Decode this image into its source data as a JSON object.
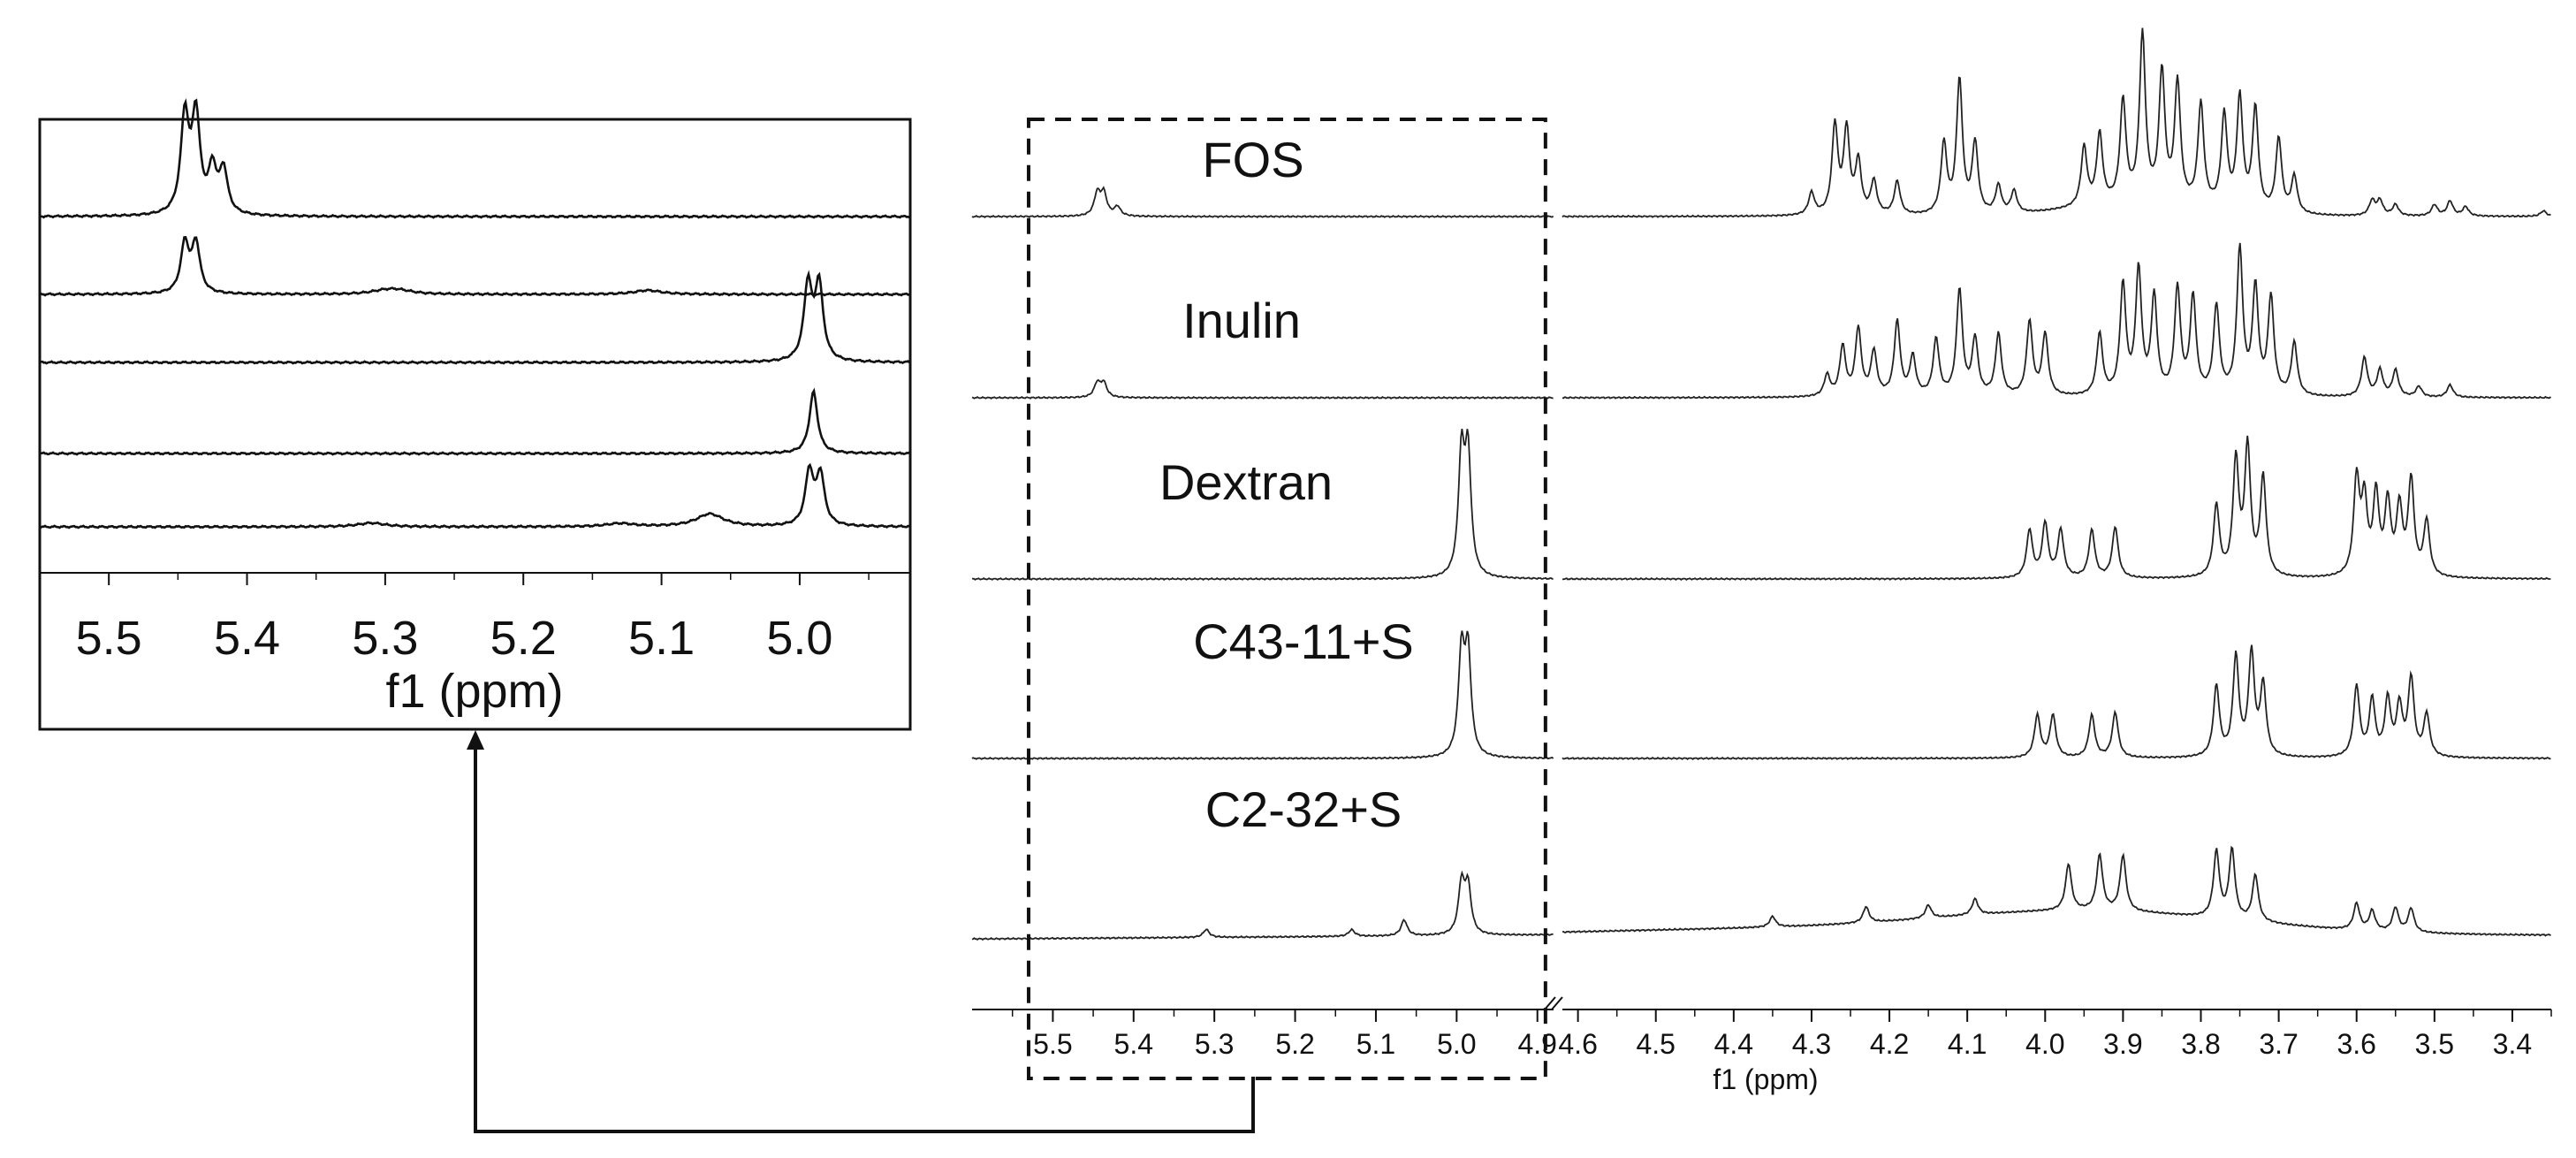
{
  "chart_data": [
    {
      "type": "line",
      "panel": "inset",
      "xlabel": "f1 (ppm)",
      "ylabel": "",
      "xlim": [
        5.55,
        4.92
      ],
      "x_reversed": true,
      "x_ticks": [
        "5.5",
        "5.4",
        "5.3",
        "5.2",
        "5.1",
        "5.0"
      ],
      "series": [
        {
          "order": 1,
          "peaks": [
            {
              "x": 5.445,
              "h": 1.0
            },
            {
              "x": 5.437,
              "h": 1.0
            },
            {
              "x": 5.425,
              "h": 0.45
            },
            {
              "x": 5.417,
              "h": 0.45
            }
          ]
        },
        {
          "order": 2,
          "peaks": [
            {
              "x": 5.445,
              "h": 0.75
            },
            {
              "x": 5.437,
              "h": 0.75
            },
            {
              "x": 5.3,
              "h": 0.05
            },
            {
              "x": 5.29,
              "h": 0.05
            },
            {
              "x": 5.11,
              "h": 0.06
            }
          ]
        },
        {
          "order": 3,
          "peaks": [
            {
              "x": 4.994,
              "h": 1.0
            },
            {
              "x": 4.986,
              "h": 1.0
            }
          ]
        },
        {
          "order": 4,
          "peaks": [
            {
              "x": 4.99,
              "h": 0.9
            }
          ]
        },
        {
          "order": 5,
          "peaks": [
            {
              "x": 4.993,
              "h": 0.85
            },
            {
              "x": 4.985,
              "h": 0.8
            },
            {
              "x": 5.065,
              "h": 0.2
            },
            {
              "x": 5.31,
              "h": 0.06
            },
            {
              "x": 5.13,
              "h": 0.05
            }
          ]
        }
      ]
    },
    {
      "type": "line",
      "panel": "main",
      "xlabel": "f1 (ppm)",
      "ylabel": "",
      "xlim": [
        5.6,
        3.35
      ],
      "x_reversed": true,
      "axis_break_between": [
        4.9,
        4.6
      ],
      "x_ticks": [
        "5.5",
        "5.4",
        "5.3",
        "5.2",
        "5.1",
        "5.0",
        "4.9",
        "4.6",
        "4.5",
        "4.4",
        "4.3",
        "4.2",
        "4.1",
        "4.0",
        "3.9",
        "3.8",
        "3.7",
        "3.6",
        "3.5",
        "3.4"
      ],
      "highlight_box_ppm": [
        5.53,
        4.89
      ],
      "series": [
        {
          "name": "FOS",
          "peaks": [
            {
              "x": 5.445,
              "h": 0.12
            },
            {
              "x": 5.437,
              "h": 0.12
            },
            {
              "x": 5.42,
              "h": 0.05
            },
            {
              "x": 4.3,
              "h": 0.12
            },
            {
              "x": 4.27,
              "h": 0.48
            },
            {
              "x": 4.255,
              "h": 0.45
            },
            {
              "x": 4.24,
              "h": 0.28
            },
            {
              "x": 4.22,
              "h": 0.18
            },
            {
              "x": 4.19,
              "h": 0.18
            },
            {
              "x": 4.13,
              "h": 0.38
            },
            {
              "x": 4.11,
              "h": 0.72
            },
            {
              "x": 4.09,
              "h": 0.38
            },
            {
              "x": 4.06,
              "h": 0.15
            },
            {
              "x": 4.04,
              "h": 0.12
            },
            {
              "x": 3.95,
              "h": 0.32
            },
            {
              "x": 3.93,
              "h": 0.38
            },
            {
              "x": 3.9,
              "h": 0.55
            },
            {
              "x": 3.875,
              "h": 0.9
            },
            {
              "x": 3.85,
              "h": 0.7
            },
            {
              "x": 3.83,
              "h": 0.65
            },
            {
              "x": 3.8,
              "h": 0.55
            },
            {
              "x": 3.77,
              "h": 0.5
            },
            {
              "x": 3.75,
              "h": 0.6
            },
            {
              "x": 3.73,
              "h": 0.55
            },
            {
              "x": 3.7,
              "h": 0.4
            },
            {
              "x": 3.68,
              "h": 0.2
            },
            {
              "x": 3.58,
              "h": 0.08
            },
            {
              "x": 3.57,
              "h": 0.08
            },
            {
              "x": 3.55,
              "h": 0.06
            },
            {
              "x": 3.5,
              "h": 0.06
            },
            {
              "x": 3.48,
              "h": 0.08
            },
            {
              "x": 3.46,
              "h": 0.05
            },
            {
              "x": 3.36,
              "h": 0.03
            }
          ]
        },
        {
          "name": "Inulin",
          "peaks": [
            {
              "x": 5.445,
              "h": 0.08
            },
            {
              "x": 5.437,
              "h": 0.08
            },
            {
              "x": 4.28,
              "h": 0.12
            },
            {
              "x": 4.26,
              "h": 0.28
            },
            {
              "x": 4.24,
              "h": 0.38
            },
            {
              "x": 4.22,
              "h": 0.25
            },
            {
              "x": 4.19,
              "h": 0.42
            },
            {
              "x": 4.17,
              "h": 0.22
            },
            {
              "x": 4.14,
              "h": 0.32
            },
            {
              "x": 4.11,
              "h": 0.6
            },
            {
              "x": 4.09,
              "h": 0.32
            },
            {
              "x": 4.06,
              "h": 0.35
            },
            {
              "x": 4.02,
              "h": 0.42
            },
            {
              "x": 4.0,
              "h": 0.35
            },
            {
              "x": 3.93,
              "h": 0.35
            },
            {
              "x": 3.9,
              "h": 0.62
            },
            {
              "x": 3.88,
              "h": 0.7
            },
            {
              "x": 3.86,
              "h": 0.55
            },
            {
              "x": 3.83,
              "h": 0.6
            },
            {
              "x": 3.81,
              "h": 0.55
            },
            {
              "x": 3.78,
              "h": 0.5
            },
            {
              "x": 3.75,
              "h": 0.82
            },
            {
              "x": 3.73,
              "h": 0.6
            },
            {
              "x": 3.71,
              "h": 0.55
            },
            {
              "x": 3.68,
              "h": 0.3
            },
            {
              "x": 3.59,
              "h": 0.22
            },
            {
              "x": 3.57,
              "h": 0.15
            },
            {
              "x": 3.55,
              "h": 0.15
            },
            {
              "x": 3.52,
              "h": 0.06
            },
            {
              "x": 3.48,
              "h": 0.07
            }
          ]
        },
        {
          "name": "Dextran",
          "peaks": [
            {
              "x": 4.994,
              "h": 0.75
            },
            {
              "x": 4.986,
              "h": 0.75
            },
            {
              "x": 4.02,
              "h": 0.3
            },
            {
              "x": 4.0,
              "h": 0.34
            },
            {
              "x": 3.98,
              "h": 0.3
            },
            {
              "x": 3.94,
              "h": 0.3
            },
            {
              "x": 3.91,
              "h": 0.32
            },
            {
              "x": 3.78,
              "h": 0.45
            },
            {
              "x": 3.755,
              "h": 0.72
            },
            {
              "x": 3.74,
              "h": 0.8
            },
            {
              "x": 3.72,
              "h": 0.62
            },
            {
              "x": 3.6,
              "h": 0.6
            },
            {
              "x": 3.59,
              "h": 0.45
            },
            {
              "x": 3.575,
              "h": 0.5
            },
            {
              "x": 3.56,
              "h": 0.45
            },
            {
              "x": 3.545,
              "h": 0.42
            },
            {
              "x": 3.53,
              "h": 0.6
            },
            {
              "x": 3.51,
              "h": 0.35
            }
          ]
        },
        {
          "name": "C43-11+S",
          "peaks": [
            {
              "x": 4.994,
              "h": 0.72
            },
            {
              "x": 4.986,
              "h": 0.72
            },
            {
              "x": 4.01,
              "h": 0.3
            },
            {
              "x": 3.99,
              "h": 0.3
            },
            {
              "x": 3.94,
              "h": 0.3
            },
            {
              "x": 3.91,
              "h": 0.32
            },
            {
              "x": 3.78,
              "h": 0.5
            },
            {
              "x": 3.755,
              "h": 0.7
            },
            {
              "x": 3.735,
              "h": 0.72
            },
            {
              "x": 3.72,
              "h": 0.5
            },
            {
              "x": 3.6,
              "h": 0.5
            },
            {
              "x": 3.58,
              "h": 0.4
            },
            {
              "x": 3.56,
              "h": 0.4
            },
            {
              "x": 3.545,
              "h": 0.35
            },
            {
              "x": 3.53,
              "h": 0.55
            },
            {
              "x": 3.51,
              "h": 0.3
            }
          ]
        },
        {
          "name": "C2-32+S",
          "peaks": [
            {
              "x": 4.994,
              "h": 0.38
            },
            {
              "x": 4.986,
              "h": 0.36
            },
            {
              "x": 5.065,
              "h": 0.12
            },
            {
              "x": 5.31,
              "h": 0.06
            },
            {
              "x": 5.13,
              "h": 0.05
            },
            {
              "x": 4.35,
              "h": 0.08
            },
            {
              "x": 4.23,
              "h": 0.12
            },
            {
              "x": 4.15,
              "h": 0.1
            },
            {
              "x": 4.09,
              "h": 0.12
            },
            {
              "x": 3.97,
              "h": 0.35
            },
            {
              "x": 3.93,
              "h": 0.42
            },
            {
              "x": 3.9,
              "h": 0.42
            },
            {
              "x": 3.78,
              "h": 0.5
            },
            {
              "x": 3.76,
              "h": 0.52
            },
            {
              "x": 3.73,
              "h": 0.35
            },
            {
              "x": 3.6,
              "h": 0.2
            },
            {
              "x": 3.58,
              "h": 0.15
            },
            {
              "x": 3.55,
              "h": 0.18
            },
            {
              "x": 3.53,
              "h": 0.18
            }
          ]
        }
      ]
    }
  ]
}
